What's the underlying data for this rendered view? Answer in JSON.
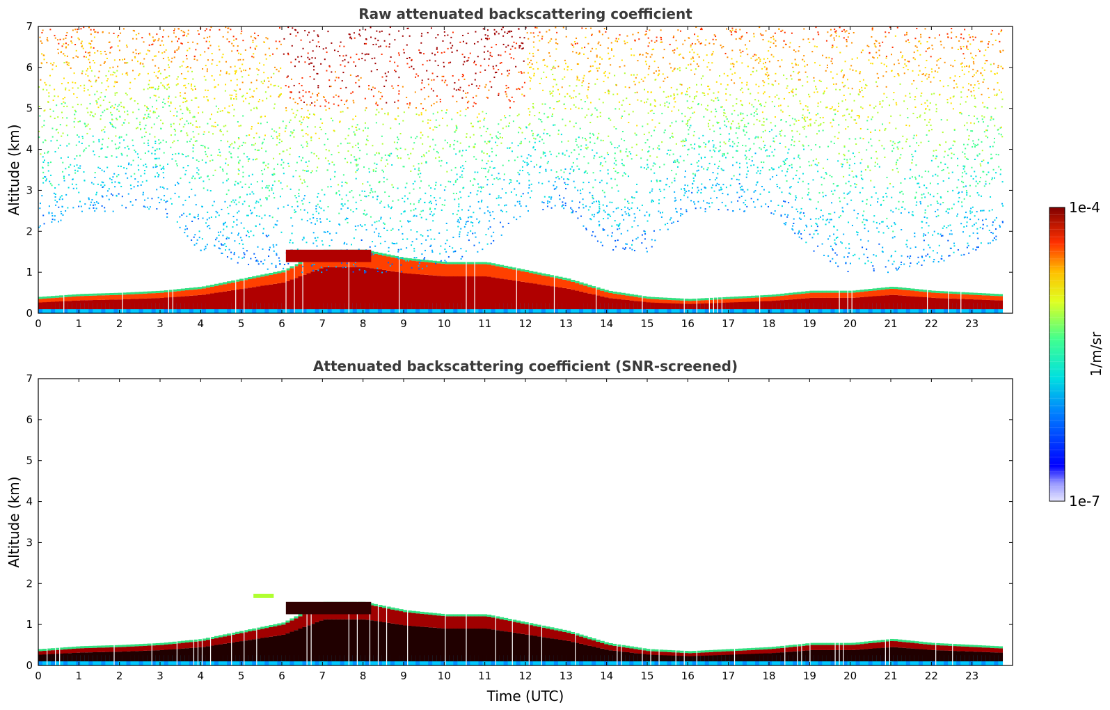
{
  "chart_data": [
    {
      "type": "heatmap",
      "title": "Raw attenuated backscattering coefficient",
      "xlabel": "",
      "ylabel": "Altitude (km)",
      "xlim": [
        0,
        24
      ],
      "ylim": [
        0,
        7
      ],
      "xticks": [
        "0",
        "1",
        "2",
        "3",
        "4",
        "5",
        "6",
        "7",
        "8",
        "9",
        "10",
        "11",
        "12",
        "13",
        "14",
        "15",
        "16",
        "17",
        "18",
        "19",
        "20",
        "21",
        "22",
        "23"
      ],
      "yticks": [
        "0",
        "1",
        "2",
        "3",
        "4",
        "5",
        "6",
        "7"
      ],
      "boundary_layer_top_km": [
        0.35,
        0.42,
        0.45,
        0.5,
        0.6,
        0.8,
        1.0,
        1.5,
        1.5,
        1.3,
        1.2,
        1.2,
        1.0,
        0.8,
        0.5,
        0.35,
        0.3,
        0.35,
        0.4,
        0.5,
        0.5,
        0.6,
        0.5,
        0.45,
        0.4
      ],
      "noise_floor_km": [
        2.0,
        2.5,
        2.5,
        2.5,
        1.5,
        1.2,
        1.0,
        1.0,
        1.0,
        1.0,
        1.2,
        1.5,
        2.5,
        2.5,
        1.5,
        1.5,
        2.5,
        2.5,
        2.5,
        1.5,
        1.0,
        1.0,
        1.2,
        1.5,
        2.0
      ]
    },
    {
      "type": "heatmap",
      "title": "Attenuated backscattering coefficient (SNR-screened)",
      "xlabel": "Time (UTC)",
      "ylabel": "Altitude (km)",
      "xlim": [
        0,
        24
      ],
      "ylim": [
        0,
        7
      ],
      "xticks": [
        "0",
        "1",
        "2",
        "3",
        "4",
        "5",
        "6",
        "7",
        "8",
        "9",
        "10",
        "11",
        "12",
        "13",
        "14",
        "15",
        "16",
        "17",
        "18",
        "19",
        "20",
        "21",
        "22",
        "23"
      ],
      "yticks": [
        "0",
        "1",
        "2",
        "3",
        "4",
        "5",
        "6",
        "7"
      ],
      "boundary_layer_top_km": [
        0.35,
        0.42,
        0.45,
        0.5,
        0.6,
        0.8,
        1.0,
        1.5,
        1.5,
        1.3,
        1.2,
        1.2,
        1.0,
        0.8,
        0.5,
        0.35,
        0.3,
        0.35,
        0.4,
        0.5,
        0.5,
        0.6,
        0.5,
        0.45,
        0.4
      ]
    }
  ],
  "colorbar": {
    "max_label": "1e-4",
    "min_label": "1e-7",
    "unit_label": "1/m/sr",
    "scale": "log",
    "range": [
      1e-07,
      0.0001
    ]
  }
}
